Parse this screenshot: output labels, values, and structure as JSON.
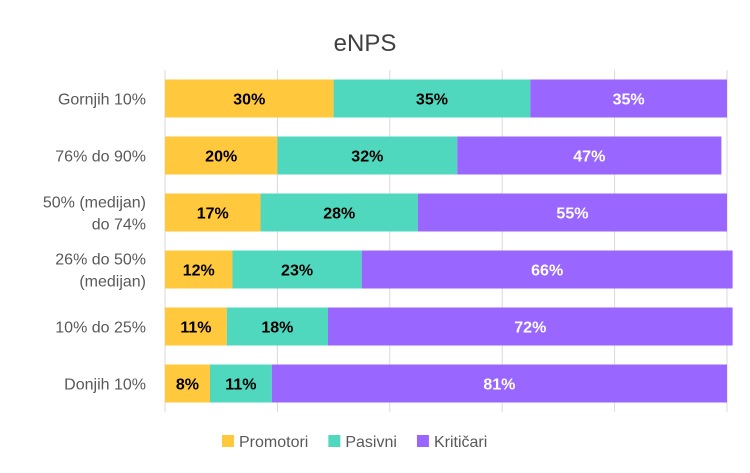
{
  "chart_data": {
    "type": "bar",
    "orientation": "horizontal",
    "stacked": true,
    "title": "eNPS",
    "xlabel": "",
    "ylabel": "",
    "xlim": [
      0,
      100
    ],
    "grid": true,
    "legend_position": "bottom",
    "categories": [
      [
        "Gornjih 10%"
      ],
      [
        "76% do 90%"
      ],
      [
        "50% (medijan)",
        "do 74%"
      ],
      [
        "26% do 50%",
        "(medijan)"
      ],
      [
        "10% do 25%"
      ],
      [
        "Donjih 10%"
      ]
    ],
    "series": [
      {
        "name": "Promotori",
        "color": "#FFC83D",
        "label_color": "#000000",
        "values": [
          30,
          20,
          17,
          12,
          11,
          8
        ]
      },
      {
        "name": "Pasivni",
        "color": "#4FD8BE",
        "label_color": "#000000",
        "values": [
          35,
          32,
          28,
          23,
          18,
          11
        ]
      },
      {
        "name": "Kritičari",
        "color": "#9966FF",
        "label_color": "#ffffff",
        "values": [
          35,
          47,
          55,
          66,
          72,
          81
        ]
      }
    ]
  }
}
